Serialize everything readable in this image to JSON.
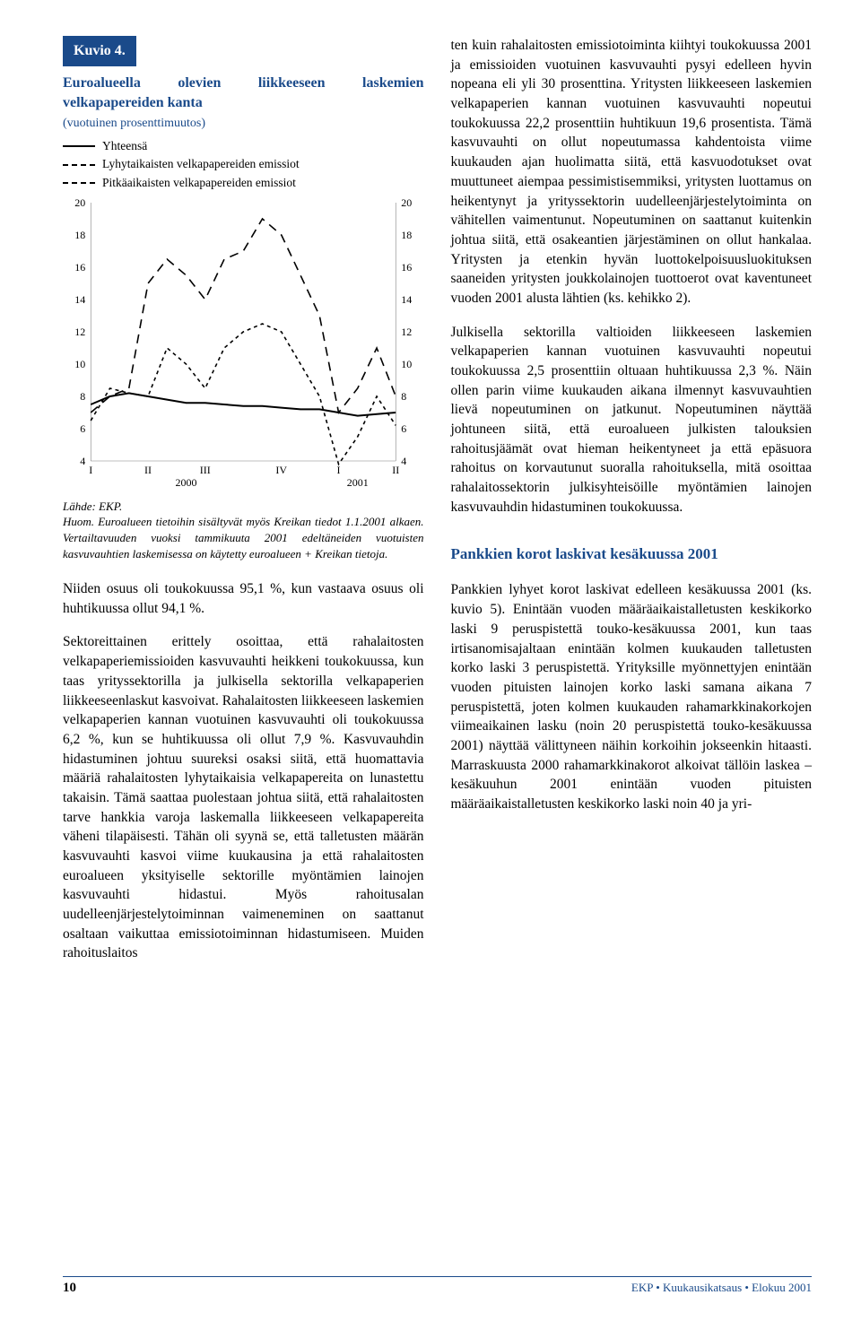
{
  "chart": {
    "label": "Kuvio 4.",
    "title": "Euroalueella olevien liikkeeseen laskemien velkapapereiden kanta",
    "subtitle": "(vuotuinen prosenttimuutos)",
    "legend": {
      "total": "Yhteensä",
      "short": "Lyhytaikaisten velkapapereiden emissiot",
      "long": "Pitkäaikaisten velkapapereiden emissiot"
    },
    "type": "line",
    "y_ticks": [
      20,
      18,
      16,
      14,
      12,
      10,
      8,
      6,
      4
    ],
    "ylim": [
      4,
      20
    ],
    "x_labels": [
      "I",
      "II",
      "III",
      "IV",
      "I",
      "II"
    ],
    "x_group_left": "2000",
    "x_group_right": "2001",
    "series": {
      "total": [
        7.5,
        8.0,
        8.2,
        8.0,
        7.8,
        7.6,
        7.6,
        7.5,
        7.4,
        7.4,
        7.3,
        7.2,
        7.2,
        7.0,
        6.8,
        6.9,
        7.0
      ],
      "short": [
        6.5,
        8.5,
        8.2,
        8.0,
        11.0,
        10.0,
        8.5,
        11.0,
        12.0,
        12.5,
        12.0,
        10.0,
        8.0,
        3.8,
        5.5,
        8.0,
        6.2
      ],
      "long": [
        7.0,
        8.0,
        8.5,
        15.0,
        16.5,
        15.5,
        14.0,
        16.5,
        17.0,
        19.0,
        18.0,
        15.5,
        13.0,
        7.0,
        8.5,
        11.0,
        8.0
      ]
    },
    "colors": {
      "line": "#000000",
      "grid": "#cccccc",
      "axis": "#808080",
      "background": "#ffffff"
    },
    "line_width": 1.6,
    "source": "Lähde: EKP.",
    "note1": "Huom. Euroalueen tietoihin sisältyvät myös Kreikan tiedot 1.1.2001 alkaen. Vertailtavuuden vuoksi tammikuuta 2001 edeltäneiden vuotuisten kasvuvauhtien laskemisessa on käytetty euroalueen + Kreikan tietoja."
  },
  "left": {
    "p1": "Niiden osuus oli toukokuussa 95,1 %, kun vastaava osuus oli huhtikuussa ollut 94,1 %.",
    "p2": "Sektoreittainen erittely osoittaa, että rahalaitosten velkapaperiemissioiden kasvuvauhti heikkeni toukokuussa, kun taas yrityssektorilla ja julkisella sektorilla velkapaperien liikkeeseenlaskut kasvoivat. Rahalaitosten liikkeeseen laskemien velkapaperien kannan vuotuinen kasvuvauhti oli toukokuussa 6,2 %, kun se huhtikuussa oli ollut 7,9 %. Kasvuvauhdin hidastuminen johtuu suureksi osaksi siitä, että huomattavia määriä rahalaitosten lyhytaikaisia velkapapereita on lunastettu takaisin. Tämä saattaa puolestaan johtua siitä, että rahalaitosten tarve hankkia varoja laskemalla liikkeeseen velkapapereita väheni tilapäisesti. Tähän oli syynä se, että talletusten määrän kasvuvauhti kasvoi viime kuukausina ja että rahalaitosten euroalueen yksityiselle sektorille myöntämien lainojen kasvuvauhti hidastui. Myös rahoitusalan uudelleenjärjestelytoiminnan vaimeneminen on saattanut osaltaan vaikuttaa emissiotoiminnan hidastumiseen. Muiden rahoituslaitos"
  },
  "right": {
    "p1": "ten kuin rahalaitosten emissiotoiminta kiihtyi toukokuussa 2001 ja emissioiden vuotuinen kasvuvauhti pysyi edelleen hyvin nopeana eli yli 30 prosenttina. Yritysten liikkeeseen laskemien velkapaperien kannan vuotuinen kasvuvauhti nopeutui toukokuussa 22,2 prosenttiin huhtikuun 19,6 prosentista. Tämä kasvuvauhti on ollut nopeutumassa kahdentoista viime kuukauden ajan huolimatta siitä, että kasvuodotukset ovat muuttuneet aiempaa pessimistisemmiksi, yritysten luottamus on heikentynyt ja yrityssektorin uudelleenjärjestelytoiminta on vähitellen vaimentunut. Nopeutuminen on saattanut kuitenkin johtua siitä, että osakeantien järjestäminen on ollut hankalaa. Yritysten ja etenkin hyvän luottokelpoisuusluokituksen saaneiden yritysten joukkolainojen tuottoerot ovat kaventuneet vuoden 2001 alusta lähtien (ks. kehikko 2).",
    "p2": "Julkisella sektorilla valtioiden liikkeeseen laskemien velkapaperien kannan vuotuinen kasvuvauhti nopeutui toukokuussa 2,5 prosenttiin oltuaan huhtikuussa 2,3 %. Näin ollen parin viime kuukauden aikana ilmennyt kasvuvauhtien lievä nopeutuminen on jatkunut. Nopeutuminen näyttää johtuneen siitä, että euroalueen julkisten talouksien rahoitusjäämät ovat hieman heikentyneet ja että epäsuora rahoitus on korvautunut suoralla rahoituksella, mitä osoittaa rahalaitossektorin julkisyhteisöille myöntämien lainojen kasvuvauhdin hidastuminen toukokuussa.",
    "heading": "Pankkien korot laskivat kesäkuussa 2001",
    "p3": "Pankkien lyhyet korot laskivat edelleen kesäkuussa 2001 (ks. kuvio 5). Enintään vuoden määräaikaistalletusten keskikorko laski 9 peruspistettä touko-kesäkuussa 2001, kun taas irtisanomisajaltaan enintään kolmen kuukauden talletusten korko laski 3 peruspistettä. Yrityksille myönnettyjen enintään vuoden pituisten lainojen korko laski samana aikana 7 peruspistettä, joten kolmen kuukauden rahamarkkinakorkojen viimeaikainen lasku (noin 20 peruspistettä touko-kesäkuussa 2001) näyttää välittyneen näihin korkoihin jokseenkin hitaasti. Marraskuusta 2000 rahamarkkinakorot alkoivat tällöin laskea – kesäkuuhun 2001 enintään vuoden pituisten määräaikaistalletusten keskikorko laski noin 40 ja yri-"
  },
  "footer": {
    "page": "10",
    "pub": "EKP • Kuukausikatsaus • Elokuu 2001"
  }
}
